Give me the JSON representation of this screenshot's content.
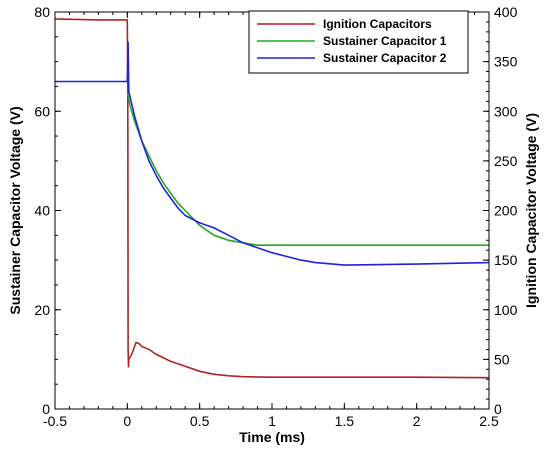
{
  "chart_data": {
    "type": "line",
    "xlabel": "Time (ms)",
    "ylabel_left": "Sustainer Capacitor Voltage (V)",
    "ylabel_right": "Ignition Capacitor Voltage (V)",
    "xlim": [
      -0.5,
      2.5
    ],
    "ylim_left": [
      0,
      80
    ],
    "ylim_right": [
      0,
      400
    ],
    "x_ticks": [
      "-0.5",
      "0",
      "0.5",
      "1",
      "1.5",
      "2",
      "2.5"
    ],
    "y_ticks_left": [
      "0",
      "20",
      "40",
      "60",
      "80"
    ],
    "y_ticks_right": [
      "0",
      "50",
      "100",
      "150",
      "200",
      "250",
      "300",
      "350",
      "400"
    ],
    "grid": false,
    "legend_position": "top-right",
    "series": [
      {
        "name": "Ignition Capacitors",
        "axis": "right",
        "color": "#b22222",
        "x": [
          -0.5,
          -0.2,
          0.0,
          0.003,
          0.005,
          0.008,
          0.01,
          0.03,
          0.06,
          0.08,
          0.1,
          0.15,
          0.2,
          0.3,
          0.4,
          0.5,
          0.6,
          0.7,
          0.8,
          1.0,
          1.2,
          1.5,
          2.0,
          2.5
        ],
        "y": [
          393,
          392,
          392,
          320,
          60,
          42,
          50,
          55,
          67,
          66,
          63,
          60,
          55,
          48,
          43,
          38,
          35,
          33.5,
          32.5,
          32,
          32,
          32,
          32,
          31.5
        ]
      },
      {
        "name": "Sustainer Capacitor 1",
        "axis": "left",
        "color": "#22aa22",
        "x": [
          0.0,
          0.02,
          0.05,
          0.1,
          0.15,
          0.2,
          0.25,
          0.3,
          0.35,
          0.4,
          0.5,
          0.6,
          0.7,
          0.8,
          0.9,
          1.0,
          1.2,
          1.5,
          2.0,
          2.5
        ],
        "y": [
          64,
          61,
          58,
          54,
          51,
          48,
          45.5,
          43.5,
          41.5,
          40,
          37,
          35,
          34,
          33.5,
          33,
          33,
          33,
          33,
          33,
          33
        ]
      },
      {
        "name": "Sustainer Capacitor 2",
        "axis": "left",
        "color": "#2222dd",
        "x": [
          -0.5,
          -0.2,
          0.0,
          0.005,
          0.01,
          0.05,
          0.1,
          0.15,
          0.2,
          0.25,
          0.3,
          0.35,
          0.4,
          0.5,
          0.6,
          0.7,
          0.8,
          1.0,
          1.2,
          1.3,
          1.5,
          2.0,
          2.5
        ],
        "y": [
          66,
          66,
          66,
          74,
          64,
          59,
          54,
          50,
          47,
          44.5,
          42.5,
          40.5,
          39,
          37.5,
          36.5,
          35,
          33.5,
          31.5,
          30,
          29.5,
          29,
          29.2,
          29.5
        ]
      }
    ]
  }
}
